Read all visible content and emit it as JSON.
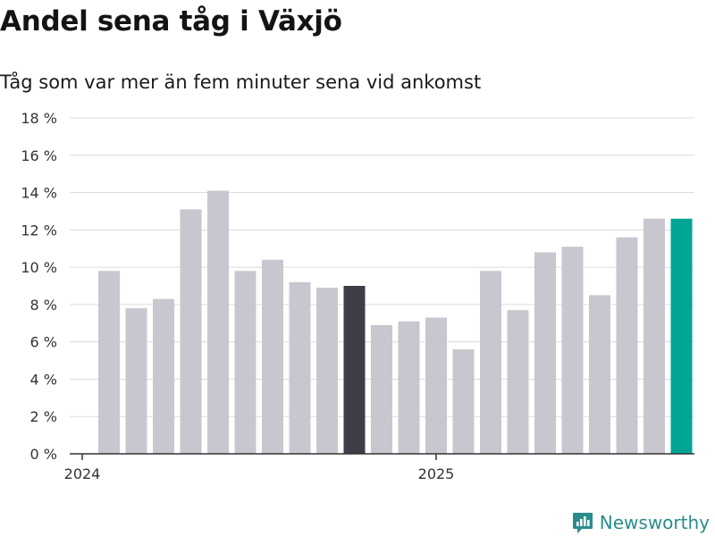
{
  "header": {
    "title": "Andel sena tåg i Växjö",
    "subtitle": "Tåg som var mer än fem minuter sena vid ankomst"
  },
  "brand": {
    "name": "Newsworthy",
    "icon": "newsworthy-logo-icon",
    "color": "#2a8c8c"
  },
  "colors": {
    "bar_default": "#c8c7cf",
    "bar_highlight": "#3f3d47",
    "bar_latest": "#00a595",
    "gridline": "#dcdcdc",
    "axis": "#333333"
  },
  "chart_data": {
    "type": "bar",
    "title": "Andel sena tåg i Växjö",
    "subtitle": "Tåg som var mer än fem minuter sena vid ankomst",
    "xlabel": "",
    "ylabel": "",
    "ylim": [
      0,
      18
    ],
    "yticks": [
      0,
      2,
      4,
      6,
      8,
      10,
      12,
      14,
      16,
      18
    ],
    "ytick_labels": [
      "0 %",
      "2 %",
      "4 %",
      "6 %",
      "8 %",
      "10 %",
      "12 %",
      "14 %",
      "16 %",
      "18 %"
    ],
    "grid": true,
    "categories": [
      "2024-01",
      "2024-02",
      "2024-03",
      "2024-04",
      "2024-05",
      "2024-06",
      "2024-07",
      "2024-08",
      "2024-09",
      "2024-10",
      "2024-11",
      "2024-12",
      "2025-01",
      "2025-02",
      "2025-03",
      "2025-04",
      "2025-05",
      "2025-06",
      "2025-07",
      "2025-08",
      "2025-09",
      "2025-10"
    ],
    "values": [
      9.8,
      7.8,
      8.3,
      13.1,
      14.1,
      9.8,
      10.4,
      9.2,
      8.9,
      9.0,
      6.9,
      7.1,
      7.3,
      5.6,
      9.8,
      7.7,
      10.8,
      11.1,
      8.5,
      11.6,
      12.6,
      12.6
    ],
    "highlighted": {
      "2024-10": "bar_highlight",
      "2025-10": "bar_latest"
    },
    "x_tick_labels": [
      {
        "category": "2024-01",
        "label": "2024"
      },
      {
        "category": "2025-01",
        "label": "2025"
      }
    ]
  }
}
